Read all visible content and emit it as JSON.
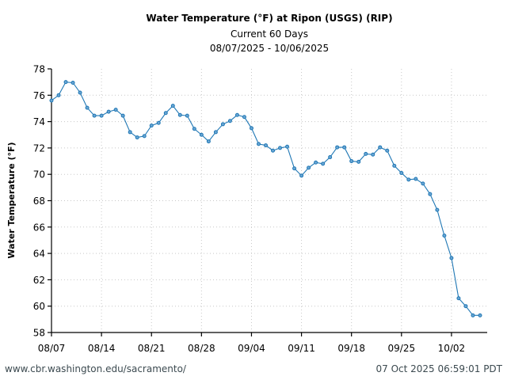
{
  "chart_data": {
    "type": "line",
    "title": "Water Temperature (°F) at Ripon (USGS) (RIP)",
    "subtitle": "Current 60 Days",
    "date_range": "08/07/2025 - 10/06/2025",
    "xlabel": "",
    "ylabel": "Water Temperature (°F)",
    "ylim": [
      58,
      78
    ],
    "yticks": [
      58,
      60,
      62,
      64,
      66,
      68,
      70,
      72,
      74,
      76,
      78
    ],
    "xlim_days": [
      0,
      61
    ],
    "xticks": [
      {
        "label": "08/07",
        "day": 0
      },
      {
        "label": "08/14",
        "day": 7
      },
      {
        "label": "08/21",
        "day": 14
      },
      {
        "label": "08/28",
        "day": 21
      },
      {
        "label": "09/04",
        "day": 28
      },
      {
        "label": "09/11",
        "day": 35
      },
      {
        "label": "09/18",
        "day": 42
      },
      {
        "label": "09/25",
        "day": 49
      },
      {
        "label": "10/02",
        "day": 56
      }
    ],
    "grid": true,
    "series": [
      {
        "name": "Water Temperature",
        "color": "#1f77b4",
        "x": [
          "08/07",
          "08/08",
          "08/09",
          "08/10",
          "08/11",
          "08/12",
          "08/13",
          "08/14",
          "08/15",
          "08/16",
          "08/17",
          "08/18",
          "08/19",
          "08/20",
          "08/21",
          "08/22",
          "08/23",
          "08/24",
          "08/25",
          "08/26",
          "08/27",
          "08/28",
          "08/29",
          "08/30",
          "08/31",
          "09/01",
          "09/02",
          "09/03",
          "09/04",
          "09/05",
          "09/06",
          "09/07",
          "09/08",
          "09/09",
          "09/10",
          "09/11",
          "09/12",
          "09/13",
          "09/14",
          "09/15",
          "09/16",
          "09/17",
          "09/18",
          "09/19",
          "09/20",
          "09/21",
          "09/22",
          "09/23",
          "09/24",
          "09/25",
          "09/26",
          "09/27",
          "09/28",
          "09/29",
          "09/30",
          "10/01",
          "10/02",
          "10/03",
          "10/04",
          "10/05",
          "10/06"
        ],
        "values": [
          75.6,
          76.0,
          77.0,
          76.95,
          76.2,
          75.05,
          74.45,
          74.45,
          74.75,
          74.9,
          74.45,
          73.2,
          72.8,
          72.9,
          73.7,
          73.9,
          74.65,
          75.2,
          74.5,
          74.45,
          73.45,
          73.0,
          72.5,
          73.2,
          73.8,
          74.05,
          74.5,
          74.35,
          73.5,
          72.3,
          72.2,
          71.8,
          72.0,
          72.1,
          70.45,
          69.9,
          70.5,
          70.9,
          70.8,
          71.3,
          72.05,
          72.05,
          71.0,
          70.95,
          71.55,
          71.5,
          72.05,
          71.8,
          70.65,
          70.1,
          69.6,
          69.65,
          69.3,
          68.5,
          67.3,
          65.35,
          63.65,
          60.6,
          60.0,
          59.3,
          59.3
        ]
      }
    ]
  },
  "footer": {
    "source_url": "www.cbr.washington.edu/sacramento/",
    "timestamp": "07 Oct 2025 06:59:01 PDT"
  }
}
